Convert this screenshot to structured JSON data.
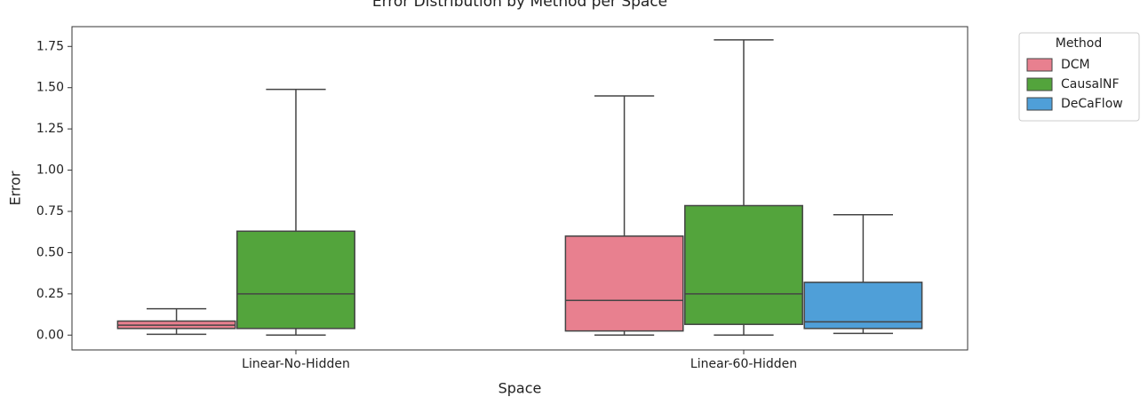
{
  "chart_data": {
    "type": "box",
    "title": "Error Distribution by Method per Space",
    "x_label": "Space",
    "y_label": "Error",
    "categories": [
      "Linear-No-Hidden",
      "Linear-60-Hidden"
    ],
    "legend_title": "Method",
    "legend_position": "outside upper right",
    "ylim": [
      -0.09,
      1.87
    ],
    "yticks": [
      {
        "value": 0,
        "label": "0.00"
      },
      0.25,
      {
        "value": 0.5,
        "label": "0.50"
      },
      0.75,
      {
        "value": 1,
        "label": "1.00"
      },
      1.25,
      {
        "value": 1.5,
        "label": "1.50"
      },
      1.75
    ],
    "series": [
      {
        "name": "DCM",
        "color": "#e8808f",
        "values": [
          {
            "min": 0.005,
            "q1": 0.04,
            "median": 0.06,
            "q3": 0.085,
            "max": 0.16
          },
          {
            "min": 0.0,
            "q1": 0.025,
            "median": 0.21,
            "q3": 0.6,
            "max": 1.45
          }
        ]
      },
      {
        "name": "CausalNF",
        "color": "#53a43c",
        "values": [
          {
            "min": 0.0,
            "q1": 0.04,
            "median": 0.25,
            "q3": 0.63,
            "max": 1.49
          },
          {
            "min": 0.0,
            "q1": 0.065,
            "median": 0.25,
            "q3": 0.785,
            "max": 1.79
          }
        ]
      },
      {
        "name": "DeCaFlow",
        "color": "#4f9fd8",
        "values": [
          null,
          {
            "min": 0.01,
            "q1": 0.04,
            "median": 0.08,
            "q3": 0.32,
            "max": 0.73
          }
        ]
      }
    ]
  }
}
